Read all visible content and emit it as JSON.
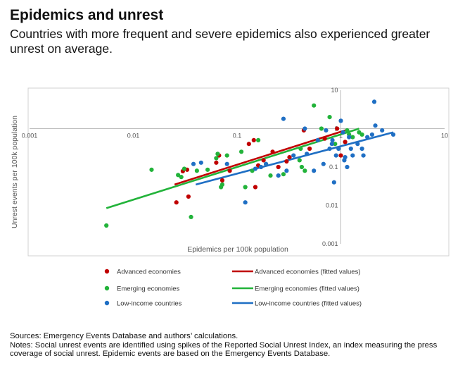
{
  "header": {
    "title": "Epidemics and unrest",
    "subtitle": "Countries with more frequent and severe epidemics also experienced greater unrest on average."
  },
  "footer": {
    "sources": "Sources: Emergency Events Database and authors’ calculations.",
    "notes": "Notes: Social unrest events are identified using spikes of the Reported Social Unrest Index, an index measuring the press coverage of social unrest. Epidemic events are based on the Emergency Events Database."
  },
  "chart_data": {
    "type": "scatter",
    "xlabel": "Epidemics per 100k population",
    "ylabel": "Unrest events per 100k population",
    "xscale": "log",
    "yscale": "log",
    "xlim": [
      0.001,
      10
    ],
    "ylim": [
      0.001,
      10
    ],
    "x_ticks": [
      "0.001",
      "0.01",
      "0.1",
      "1",
      "10"
    ],
    "y_ticks": [
      "10",
      "1",
      "0.1",
      "0.01",
      "0.001"
    ],
    "grid": false,
    "legend_position": "bottom",
    "colors": {
      "advanced": "#c00000",
      "emerging": "#22b33a",
      "low_income": "#1f6fc4"
    },
    "series": [
      {
        "name": "Advanced economies",
        "key": "advanced",
        "points": [
          [
            0.026,
            0.012
          ],
          [
            0.03,
            0.078
          ],
          [
            0.033,
            0.085
          ],
          [
            0.034,
            0.017
          ],
          [
            0.063,
            0.13
          ],
          [
            0.067,
            0.2
          ],
          [
            0.072,
            0.045
          ],
          [
            0.085,
            0.08
          ],
          [
            0.13,
            0.4
          ],
          [
            0.145,
            0.5
          ],
          [
            0.15,
            0.03
          ],
          [
            0.16,
            0.11
          ],
          [
            0.18,
            0.15
          ],
          [
            0.22,
            0.25
          ],
          [
            0.25,
            0.1
          ],
          [
            0.3,
            0.14
          ],
          [
            0.32,
            0.18
          ],
          [
            0.44,
            0.9
          ],
          [
            0.5,
            0.3
          ],
          [
            0.7,
            0.55
          ],
          [
            0.92,
            1.0
          ],
          [
            1.0,
            0.2
          ],
          [
            1.1,
            0.45
          ]
        ],
        "fit": [
          [
            0.025,
            0.035
          ],
          [
            1.1,
            0.9
          ]
        ]
      },
      {
        "name": "Emerging economies",
        "key": "emerging",
        "points": [
          [
            0.0055,
            0.003
          ],
          [
            0.015,
            0.085
          ],
          [
            0.027,
            0.062
          ],
          [
            0.029,
            0.055
          ],
          [
            0.031,
            0.09
          ],
          [
            0.036,
            0.005
          ],
          [
            0.041,
            0.08
          ],
          [
            0.052,
            0.085
          ],
          [
            0.063,
            0.17
          ],
          [
            0.065,
            0.22
          ],
          [
            0.07,
            0.03
          ],
          [
            0.072,
            0.035
          ],
          [
            0.08,
            0.2
          ],
          [
            0.11,
            0.25
          ],
          [
            0.12,
            0.03
          ],
          [
            0.14,
            0.08
          ],
          [
            0.16,
            0.5
          ],
          [
            0.19,
            0.12
          ],
          [
            0.21,
            0.06
          ],
          [
            0.28,
            0.065
          ],
          [
            0.4,
            0.15
          ],
          [
            0.41,
            0.3
          ],
          [
            0.42,
            0.1
          ],
          [
            0.45,
            0.08
          ],
          [
            0.55,
            4.0
          ],
          [
            0.65,
            1.0
          ],
          [
            0.78,
            2.0
          ],
          [
            0.88,
            0.4
          ],
          [
            1.15,
            0.9
          ],
          [
            1.2,
            0.7
          ],
          [
            1.3,
            0.6
          ],
          [
            1.5,
            0.8
          ],
          [
            1.6,
            0.7
          ]
        ],
        "fit": [
          [
            0.0055,
            0.0085
          ],
          [
            1.5,
            1.0
          ]
        ]
      },
      {
        "name": "Low-income countries",
        "key": "low_income",
        "points": [
          [
            0.038,
            0.12
          ],
          [
            0.045,
            0.13
          ],
          [
            0.08,
            0.12
          ],
          [
            0.12,
            0.012
          ],
          [
            0.15,
            0.09
          ],
          [
            0.17,
            0.1
          ],
          [
            0.19,
            0.12
          ],
          [
            0.25,
            0.06
          ],
          [
            0.28,
            1.8
          ],
          [
            0.3,
            0.08
          ],
          [
            0.35,
            0.2
          ],
          [
            0.45,
            1.0
          ],
          [
            0.47,
            0.22
          ],
          [
            0.55,
            0.08
          ],
          [
            0.6,
            0.5
          ],
          [
            0.68,
            0.12
          ],
          [
            0.72,
            0.9
          ],
          [
            0.78,
            0.3
          ],
          [
            0.82,
            0.4
          ],
          [
            0.83,
            0.5
          ],
          [
            0.86,
            0.04
          ],
          [
            0.9,
            0.2
          ],
          [
            0.95,
            0.3
          ],
          [
            1.0,
            1.6
          ],
          [
            1.05,
            0.8
          ],
          [
            1.08,
            0.15
          ],
          [
            1.1,
            0.18
          ],
          [
            1.15,
            0.1
          ],
          [
            1.2,
            0.6
          ],
          [
            1.25,
            0.3
          ],
          [
            1.3,
            0.2
          ],
          [
            1.45,
            0.4
          ],
          [
            1.6,
            0.3
          ],
          [
            1.65,
            0.2
          ],
          [
            1.8,
            0.6
          ],
          [
            2.0,
            0.7
          ],
          [
            2.1,
            5.0
          ],
          [
            2.15,
            1.2
          ],
          [
            2.5,
            0.9
          ],
          [
            3.2,
            0.7
          ]
        ],
        "fit": [
          [
            0.04,
            0.035
          ],
          [
            3.2,
            0.8
          ]
        ]
      }
    ],
    "legend": [
      {
        "key": "advanced",
        "marker": "Advanced economies",
        "line": "Advanced economies (fitted values)"
      },
      {
        "key": "emerging",
        "marker": "Emerging economies",
        "line": "Emerging economies (fitted values)"
      },
      {
        "key": "low_income",
        "marker": "Low-income countries",
        "line": "Low-income countries (fitted values)"
      }
    ]
  }
}
